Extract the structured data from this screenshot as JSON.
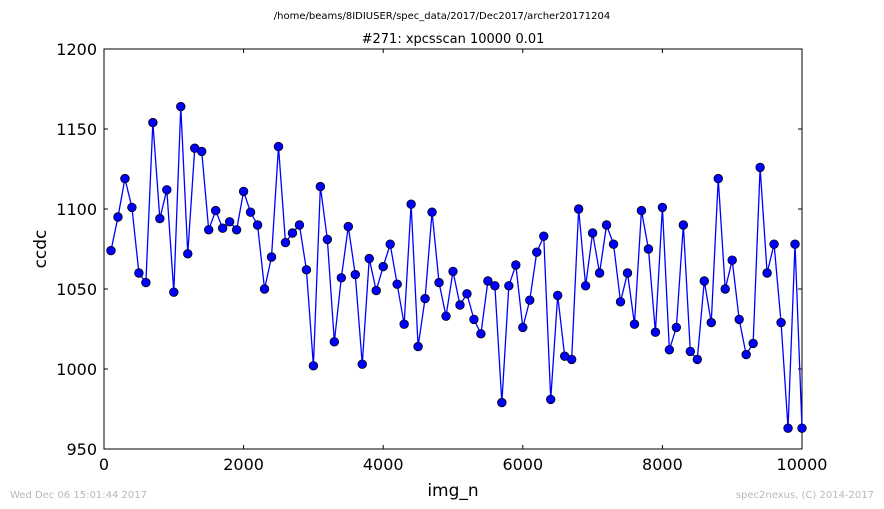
{
  "suptitle": "/home/beams/8IDIUSER/spec_data/2017/Dec2017/archer20171204",
  "footer_left": "Wed Dec 06 15:01:44 2017",
  "footer_right": "spec2nexus, (C) 2014-2017",
  "colors": {
    "series": "#0000ff",
    "marker_edge": "#000000"
  },
  "chart_data": {
    "type": "line",
    "title": "#271: xpcsscan 10000 0.01",
    "xlabel": "img_n",
    "ylabel": "ccdc",
    "xlim": [
      0,
      10000
    ],
    "ylim": [
      950,
      1200
    ],
    "xticks": [
      0,
      2000,
      4000,
      6000,
      8000,
      10000
    ],
    "yticks": [
      950,
      1000,
      1050,
      1100,
      1150,
      1200
    ],
    "grid": false,
    "series": [
      {
        "marker": "circle",
        "x": [
          100,
          200,
          300,
          400,
          500,
          600,
          700,
          800,
          900,
          1000,
          1100,
          1200,
          1300,
          1400,
          1500,
          1600,
          1700,
          1800,
          1900,
          2000,
          2100,
          2200,
          2300,
          2400,
          2500,
          2600,
          2700,
          2800,
          2900,
          3000,
          3100,
          3200,
          3300,
          3400,
          3500,
          3600,
          3700,
          3800,
          3900,
          4000,
          4100,
          4200,
          4300,
          4400,
          4500,
          4600,
          4700,
          4800,
          4900,
          5000,
          5100,
          5200,
          5300,
          5400,
          5500,
          5600,
          5700,
          5800,
          5900,
          6000,
          6100,
          6200,
          6300,
          6400,
          6500,
          6600,
          6700,
          6800,
          6900,
          7000,
          7100,
          7200,
          7300,
          7400,
          7500,
          7600,
          7700,
          7800,
          7900,
          8000,
          8100,
          8200,
          8300,
          8400,
          8500,
          8600,
          8700,
          8800,
          8900,
          9000,
          9100,
          9200,
          9300,
          9400,
          9500,
          9600,
          9700,
          9800,
          9900,
          10000
        ],
        "y": [
          1074,
          1095,
          1119,
          1101,
          1060,
          1054,
          1154,
          1094,
          1112,
          1048,
          1164,
          1072,
          1138,
          1136,
          1087,
          1099,
          1088,
          1092,
          1087,
          1111,
          1098,
          1090,
          1050,
          1070,
          1139,
          1079,
          1085,
          1090,
          1062,
          1002,
          1114,
          1081,
          1017,
          1057,
          1089,
          1059,
          1003,
          1069,
          1049,
          1064,
          1078,
          1053,
          1028,
          1103,
          1014,
          1044,
          1098,
          1054,
          1033,
          1061,
          1040,
          1047,
          1031,
          1022,
          1055,
          1052,
          979,
          1052,
          1065,
          1026,
          1043,
          1073,
          1083,
          981,
          1046,
          1008,
          1006,
          1100,
          1052,
          1085,
          1060,
          1090,
          1078,
          1042,
          1060,
          1028,
          1099,
          1075,
          1023,
          1101,
          1012,
          1026,
          1090,
          1011,
          1006,
          1055,
          1029,
          1119,
          1050,
          1068,
          1031,
          1009,
          1016,
          1126,
          1060,
          1078,
          1029,
          963,
          1078,
          963
        ]
      }
    ]
  }
}
